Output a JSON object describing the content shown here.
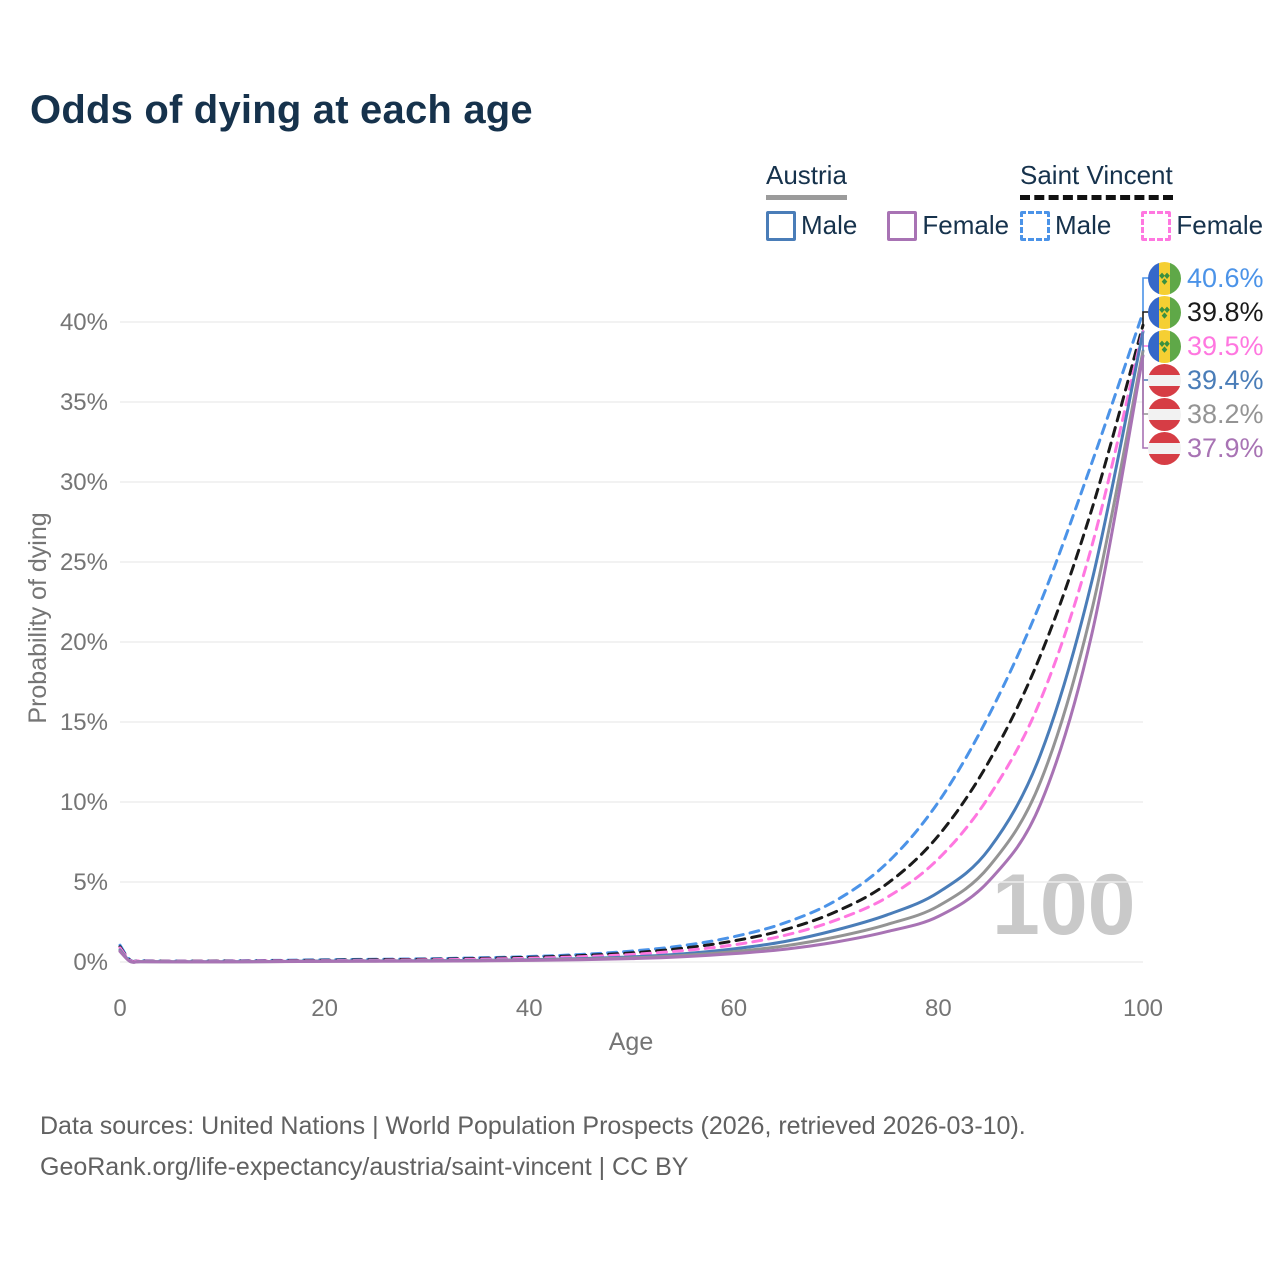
{
  "title": "Odds of dying at each age",
  "legend": {
    "groups": [
      {
        "name": "Austria",
        "line_style": "solid",
        "underline_color": "#9b9b9b",
        "items": [
          {
            "label": "Male",
            "color": "#4a7db8"
          },
          {
            "label": "Female",
            "color": "#a873b4"
          }
        ]
      },
      {
        "name": "Saint Vincent",
        "line_style": "dashed",
        "underline_color": "#111111",
        "items": [
          {
            "label": "Male",
            "color": "#4b93e8"
          },
          {
            "label": "Female",
            "color": "#ff77e0"
          }
        ]
      }
    ]
  },
  "colors": {
    "title_text": "#16324c",
    "axis_text": "#757575",
    "gridline": "#ededed",
    "footer_text": "#616161",
    "watermark": "#c9c9c9"
  },
  "chart_data": {
    "type": "line",
    "title": "Odds of dying at each age",
    "xlabel": "Age",
    "ylabel": "Probability of dying",
    "xlim": [
      0,
      100
    ],
    "ylim": [
      0,
      42
    ],
    "grid": true,
    "legend_position": "top-right",
    "watermark": "100",
    "x_ticks": [
      {
        "v": 0,
        "label": "0"
      },
      {
        "v": 20,
        "label": "20"
      },
      {
        "v": 40,
        "label": "40"
      },
      {
        "v": 60,
        "label": "60"
      },
      {
        "v": 80,
        "label": "80"
      },
      {
        "v": 100,
        "label": "100"
      }
    ],
    "y_ticks": [
      {
        "v": 0,
        "label": "0%"
      },
      {
        "v": 5,
        "label": "5%"
      },
      {
        "v": 10,
        "label": "10%"
      },
      {
        "v": 15,
        "label": "15%"
      },
      {
        "v": 20,
        "label": "20%"
      },
      {
        "v": 25,
        "label": "25%"
      },
      {
        "v": 30,
        "label": "30%"
      },
      {
        "v": 35,
        "label": "35%"
      },
      {
        "v": 40,
        "label": "40%"
      }
    ],
    "x": [
      0,
      1,
      2,
      5,
      10,
      15,
      20,
      25,
      30,
      35,
      40,
      45,
      50,
      55,
      60,
      65,
      70,
      75,
      80,
      85,
      90,
      95,
      100
    ],
    "series": [
      {
        "name": "Saint Vincent Male",
        "country": "Saint Vincent",
        "sex": "Male",
        "color": "#4b93e8",
        "dashed": true,
        "flag_icon": "saint-vincent-flag-icon",
        "end_label": "40.6%",
        "values": [
          1.05,
          0.12,
          0.08,
          0.06,
          0.07,
          0.1,
          0.14,
          0.17,
          0.2,
          0.26,
          0.34,
          0.47,
          0.68,
          1.02,
          1.58,
          2.45,
          3.85,
          6.2,
          10.0,
          15.5,
          22.5,
          31.2,
          40.6
        ]
      },
      {
        "name": "Saint Vincent Both sexes",
        "country": "Saint Vincent",
        "sex": "Both",
        "color": "#1a1a1a",
        "dashed": true,
        "flag_icon": "saint-vincent-flag-icon",
        "end_label": "39.8%",
        "values": [
          0.95,
          0.1,
          0.07,
          0.05,
          0.06,
          0.08,
          0.11,
          0.14,
          0.17,
          0.22,
          0.29,
          0.4,
          0.57,
          0.86,
          1.32,
          2.02,
          3.15,
          4.9,
          7.9,
          12.6,
          19.2,
          28.3,
          39.8
        ]
      },
      {
        "name": "Saint Vincent Female",
        "country": "Saint Vincent",
        "sex": "Female",
        "color": "#ff77e0",
        "dashed": true,
        "flag_icon": "saint-vincent-flag-icon",
        "end_label": "39.5%",
        "values": [
          0.88,
          0.09,
          0.06,
          0.045,
          0.05,
          0.065,
          0.085,
          0.105,
          0.135,
          0.175,
          0.235,
          0.33,
          0.47,
          0.71,
          1.07,
          1.67,
          2.62,
          4.05,
          6.45,
          10.4,
          16.4,
          26.0,
          39.5
        ]
      },
      {
        "name": "Austria Male",
        "country": "Austria",
        "sex": "Male",
        "color": "#4a7db8",
        "dashed": false,
        "flag_icon": "austria-flag-icon",
        "end_label": "39.4%",
        "values": [
          0.75,
          0.04,
          0.025,
          0.015,
          0.013,
          0.03,
          0.06,
          0.07,
          0.08,
          0.1,
          0.14,
          0.21,
          0.32,
          0.51,
          0.82,
          1.28,
          2.0,
          2.95,
          4.35,
          7.1,
          13.0,
          23.8,
          39.4
        ]
      },
      {
        "name": "Austria Both sexes",
        "country": "Austria",
        "sex": "Both",
        "color": "#949494",
        "dashed": false,
        "flag_icon": "austria-flag-icon",
        "end_label": "38.2%",
        "values": [
          0.7,
          0.035,
          0.02,
          0.012,
          0.011,
          0.025,
          0.048,
          0.058,
          0.068,
          0.088,
          0.12,
          0.17,
          0.26,
          0.41,
          0.65,
          1.01,
          1.57,
          2.35,
          3.5,
          6.0,
          11.3,
          22.0,
          38.2
        ]
      },
      {
        "name": "Austria Female",
        "country": "Austria",
        "sex": "Female",
        "color": "#a873b4",
        "dashed": false,
        "flag_icon": "austria-flag-icon",
        "end_label": "37.9%",
        "values": [
          0.66,
          0.03,
          0.018,
          0.01,
          0.009,
          0.02,
          0.037,
          0.047,
          0.057,
          0.073,
          0.1,
          0.14,
          0.21,
          0.33,
          0.52,
          0.8,
          1.25,
          1.9,
          2.85,
          5.1,
          9.9,
          20.5,
          37.9
        ]
      }
    ]
  },
  "footer": {
    "line1": "Data sources: United Nations | World Population Prospects (2026, retrieved 2026-03-10).",
    "line2": "GeoRank.org/life-expectancy/austria/saint-vincent | CC BY"
  }
}
